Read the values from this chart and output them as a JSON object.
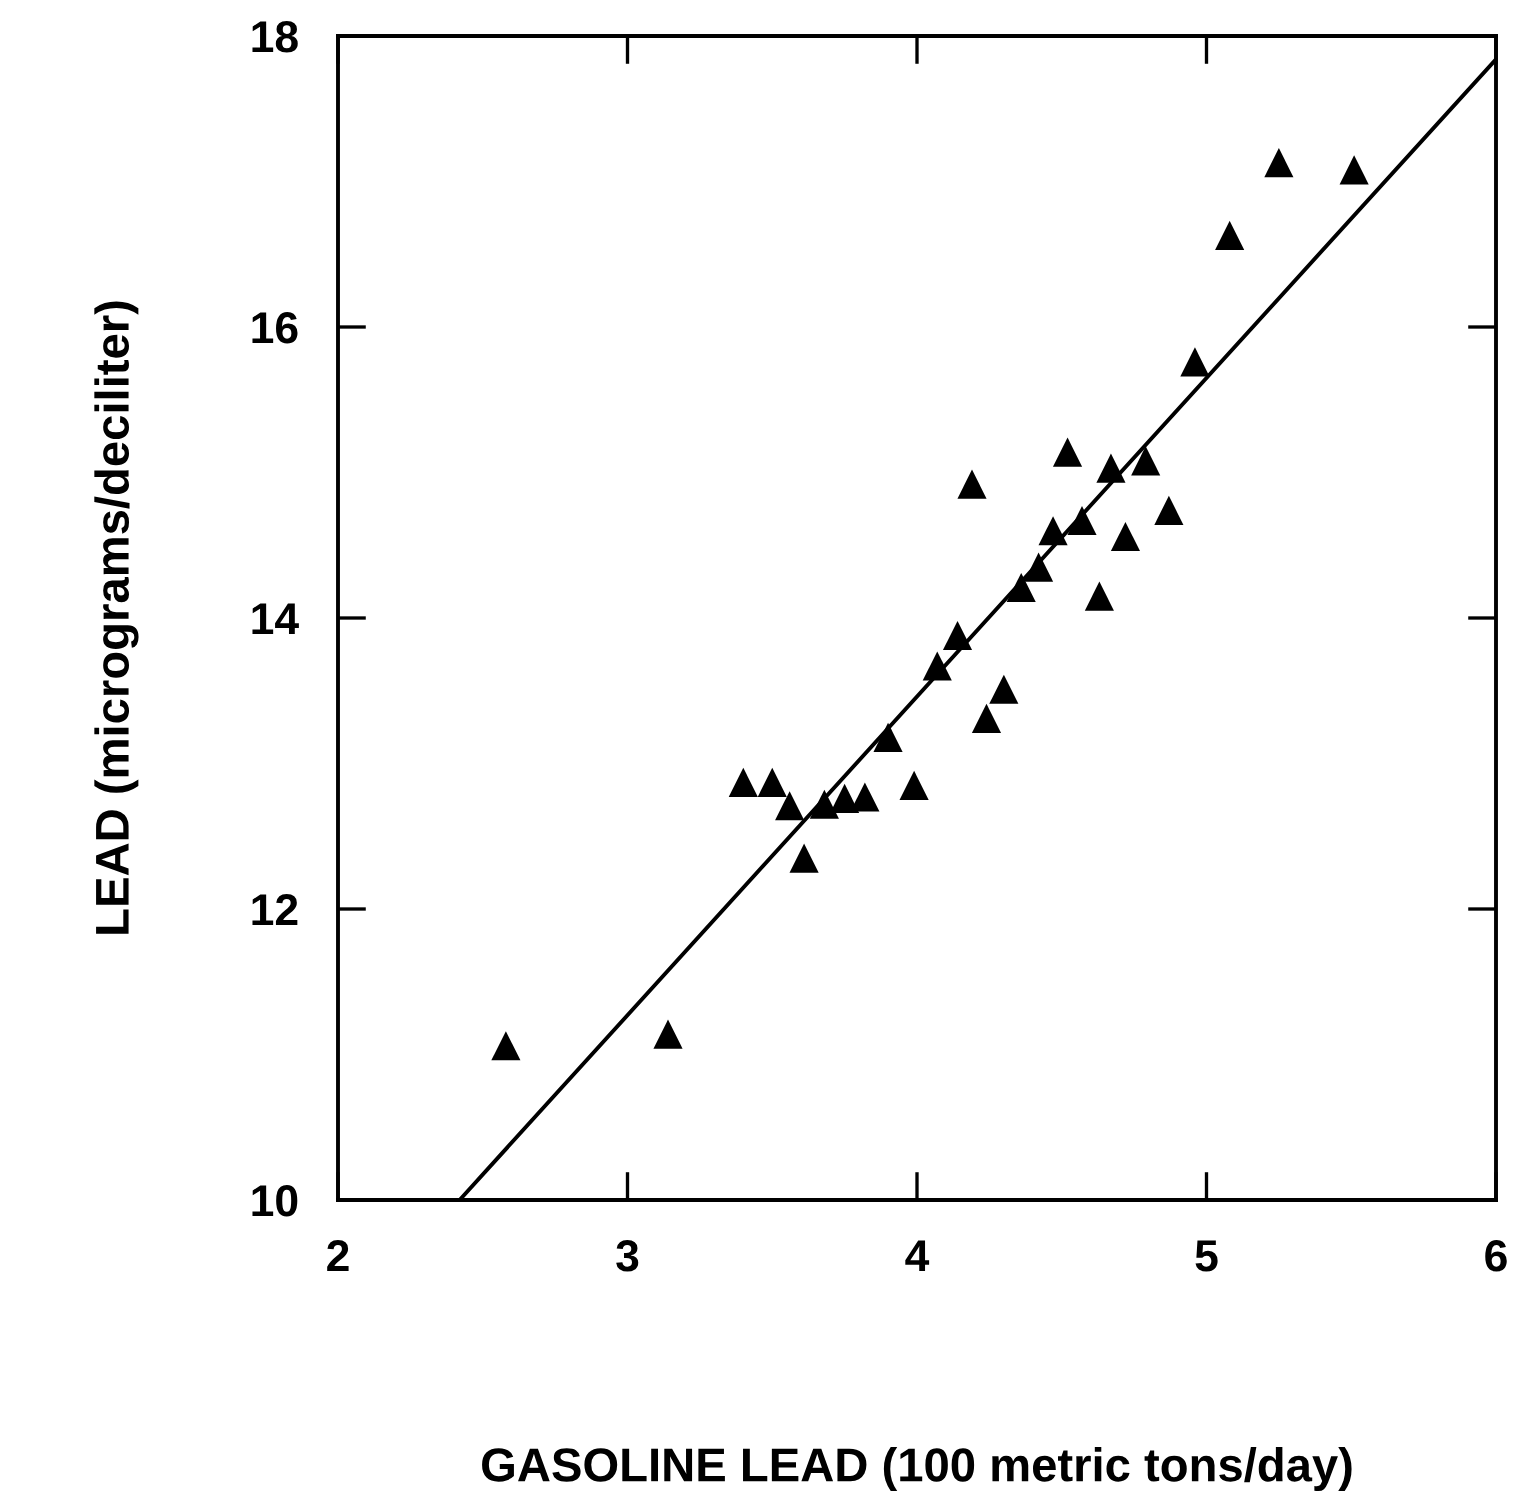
{
  "chart_data": {
    "type": "scatter",
    "xlabel": "GASOLINE LEAD (100 metric tons/day)",
    "ylabel": "LEAD (micrograms/deciliter)",
    "xlim": [
      2,
      6
    ],
    "ylim": [
      10,
      18
    ],
    "xticks": [
      2,
      3,
      4,
      5,
      6
    ],
    "yticks": [
      10,
      12,
      14,
      16,
      18
    ],
    "grid": false,
    "legend": false,
    "series": [
      {
        "marker": "triangle",
        "color": "#000000",
        "x": [
          2.58,
          3.14,
          3.4,
          3.5,
          3.56,
          3.61,
          3.68,
          3.75,
          3.82,
          3.9,
          3.99,
          4.07,
          4.14,
          4.19,
          4.24,
          4.3,
          4.36,
          4.42,
          4.47,
          4.52,
          4.57,
          4.63,
          4.67,
          4.72,
          4.79,
          4.87,
          4.96,
          5.08,
          5.25,
          5.51
        ],
        "values": [
          11.06,
          11.14,
          12.87,
          12.87,
          12.71,
          12.35,
          12.72,
          12.76,
          12.77,
          13.18,
          12.85,
          13.67,
          13.88,
          14.92,
          13.31,
          13.51,
          14.21,
          14.35,
          14.6,
          15.14,
          14.67,
          14.15,
          15.03,
          14.56,
          15.08,
          14.74,
          15.76,
          16.63,
          17.13,
          17.08
        ]
      },
      {
        "type": "line",
        "marker": "none",
        "line_style": "solid",
        "color": "#000000",
        "x": [
          2.42,
          6.0
        ],
        "values": [
          10.0,
          17.84
        ]
      }
    ]
  }
}
